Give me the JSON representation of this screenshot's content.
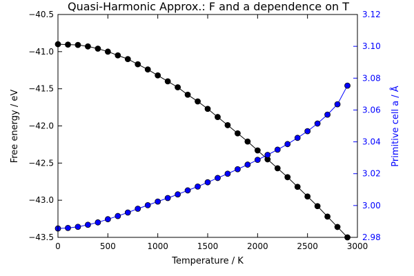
{
  "chart_data": {
    "type": "line",
    "title": "Quasi-Harmonic Approx.: F and a dependence on T",
    "xlabel": "Temperature / K",
    "ylabel_left": "Free energy / eV",
    "ylabel_right": "Primitive cell a / Å",
    "xlim": [
      0,
      3000
    ],
    "ylim_left": [
      -43.5,
      -40.5
    ],
    "ylim_right": [
      2.98,
      3.12
    ],
    "x_ticks": [
      0,
      500,
      1000,
      1500,
      2000,
      2500,
      3000
    ],
    "y_ticks_left": [
      -43.5,
      -43.0,
      -42.5,
      -42.0,
      -41.5,
      -41.0,
      -40.5
    ],
    "y_ticks_right": [
      2.98,
      3.0,
      3.02,
      3.04,
      3.06,
      3.08,
      3.1,
      3.12
    ],
    "x_tick_labels": [
      "0",
      "500",
      "1000",
      "1500",
      "2000",
      "2500",
      "3000"
    ],
    "y_tick_labels_left": [
      "−43.5",
      "−43.0",
      "−42.5",
      "−42.0",
      "−41.5",
      "−41.0",
      "−40.5"
    ],
    "y_tick_labels_right": [
      "2.98",
      "3.00",
      "3.02",
      "3.04",
      "3.06",
      "3.08",
      "3.10",
      "3.12"
    ],
    "grid": false,
    "x": [
      0,
      100,
      200,
      300,
      400,
      500,
      600,
      700,
      800,
      900,
      1000,
      1100,
      1200,
      1300,
      1400,
      1500,
      1600,
      1700,
      1800,
      1900,
      2000,
      2100,
      2200,
      2300,
      2400,
      2500,
      2600,
      2700,
      2800,
      2900
    ],
    "series": [
      {
        "axis": "left",
        "color": "#000000",
        "values": [
          -40.9,
          -40.905,
          -40.91,
          -40.93,
          -40.96,
          -41.0,
          -41.05,
          -41.1,
          -41.17,
          -41.24,
          -41.32,
          -41.4,
          -41.48,
          -41.58,
          -41.67,
          -41.77,
          -41.88,
          -41.99,
          -42.1,
          -42.21,
          -42.33,
          -42.45,
          -42.57,
          -42.69,
          -42.82,
          -42.95,
          -43.08,
          -43.22,
          -43.36,
          -43.5
        ]
      },
      {
        "axis": "right",
        "color": "#0000ff",
        "values": [
          2.9856,
          2.9859,
          2.9866,
          2.9879,
          2.9894,
          2.9914,
          2.9934,
          2.9956,
          2.998,
          3.0002,
          3.0025,
          3.0047,
          3.007,
          3.0095,
          3.0119,
          3.0146,
          3.0173,
          3.02,
          3.0228,
          3.0257,
          3.0287,
          3.0318,
          3.0351,
          3.0386,
          3.0425,
          3.0467,
          3.0515,
          3.0571,
          3.0636,
          3.0753
        ]
      }
    ]
  }
}
